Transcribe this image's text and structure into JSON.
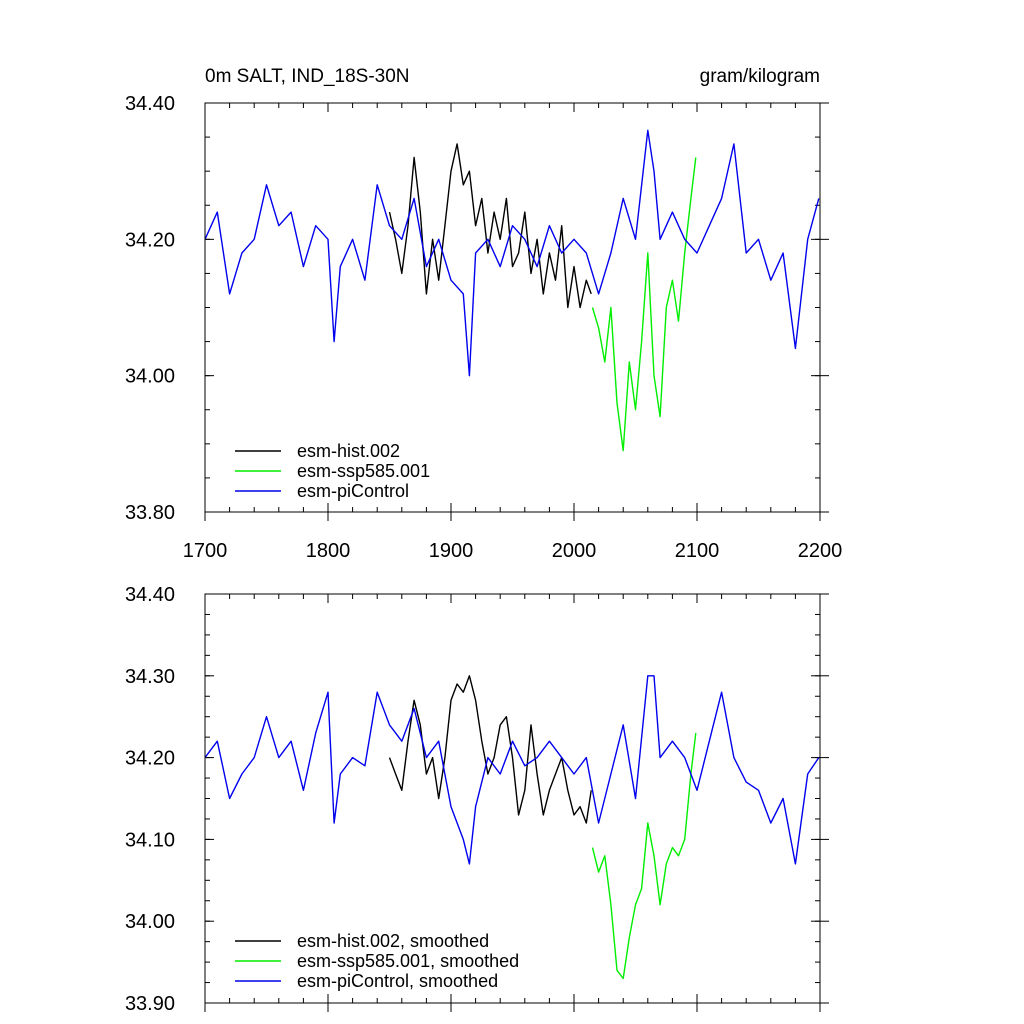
{
  "chart_data": [
    {
      "type": "line",
      "panel": "top",
      "title_left": "0m SALT, IND_18S-30N",
      "title_right": "gram/kilogram",
      "xlim": [
        1700,
        2200
      ],
      "ylim": [
        33.8,
        34.4
      ],
      "xticks": [
        1700,
        1800,
        1900,
        2000,
        2100,
        2200
      ],
      "xtick_labels": [
        "1700",
        "1800",
        "1900",
        "2000",
        "2100",
        "2200"
      ],
      "yticks": [
        33.8,
        34.0,
        34.2,
        34.4
      ],
      "ytick_labels": [
        "33.80",
        "34.00",
        "34.20",
        "34.40"
      ],
      "legend_position": "bottom-left",
      "series": [
        {
          "name": "esm-hist.002",
          "color": "#000000",
          "x": [
            1850,
            1855,
            1860,
            1865,
            1870,
            1875,
            1880,
            1885,
            1890,
            1895,
            1900,
            1905,
            1910,
            1915,
            1920,
            1925,
            1930,
            1935,
            1940,
            1945,
            1950,
            1955,
            1960,
            1965,
            1970,
            1975,
            1980,
            1985,
            1990,
            1995,
            2000,
            2005,
            2010,
            2014
          ],
          "y": [
            34.24,
            34.2,
            34.15,
            34.22,
            34.32,
            34.24,
            34.12,
            34.2,
            34.14,
            34.22,
            34.3,
            34.34,
            34.28,
            34.3,
            34.22,
            34.26,
            34.18,
            34.24,
            34.2,
            34.26,
            34.16,
            34.18,
            34.24,
            34.15,
            34.2,
            34.12,
            34.18,
            34.14,
            34.22,
            34.1,
            34.16,
            34.1,
            34.14,
            34.12
          ]
        },
        {
          "name": "esm-ssp585.001",
          "color": "#00ee00",
          "x": [
            2015,
            2020,
            2025,
            2030,
            2035,
            2040,
            2045,
            2050,
            2055,
            2060,
            2065,
            2070,
            2075,
            2080,
            2085,
            2090,
            2095,
            2099
          ],
          "y": [
            34.1,
            34.07,
            34.02,
            34.1,
            33.96,
            33.89,
            34.02,
            33.95,
            34.05,
            34.18,
            34.0,
            33.94,
            34.1,
            34.14,
            34.08,
            34.18,
            34.26,
            34.32
          ]
        },
        {
          "name": "esm-piControl",
          "color": "#0000ee",
          "x": [
            1700,
            1710,
            1720,
            1730,
            1740,
            1750,
            1760,
            1770,
            1780,
            1790,
            1800,
            1805,
            1810,
            1820,
            1830,
            1840,
            1850,
            1860,
            1870,
            1880,
            1890,
            1900,
            1910,
            1915,
            1920,
            1930,
            1940,
            1950,
            1960,
            1970,
            1980,
            1990,
            2000,
            2010,
            2020,
            2030,
            2040,
            2050,
            2060,
            2065,
            2070,
            2080,
            2090,
            2100,
            2110,
            2120,
            2130,
            2140,
            2150,
            2160,
            2170,
            2180,
            2190,
            2199
          ],
          "y": [
            34.2,
            34.24,
            34.12,
            34.18,
            34.2,
            34.28,
            34.22,
            34.24,
            34.16,
            34.22,
            34.2,
            34.05,
            34.16,
            34.2,
            34.14,
            34.28,
            34.22,
            34.2,
            34.26,
            34.16,
            34.2,
            34.14,
            34.12,
            34.0,
            34.18,
            34.2,
            34.16,
            34.22,
            34.2,
            34.16,
            34.22,
            34.18,
            34.2,
            34.18,
            34.12,
            34.18,
            34.26,
            34.2,
            34.36,
            34.3,
            34.2,
            34.24,
            34.2,
            34.18,
            34.22,
            34.26,
            34.34,
            34.18,
            34.2,
            34.14,
            34.18,
            34.04,
            34.2,
            34.26
          ]
        }
      ]
    },
    {
      "type": "line",
      "panel": "bottom",
      "xlim": [
        1700,
        2200
      ],
      "ylim": [
        33.9,
        34.4
      ],
      "xticks": [
        1700,
        1800,
        1900,
        2000,
        2100,
        2200
      ],
      "yticks": [
        33.9,
        34.0,
        34.1,
        34.2,
        34.3,
        34.4
      ],
      "ytick_labels": [
        "33.90",
        "34.00",
        "34.10",
        "34.20",
        "34.30",
        "34.40"
      ],
      "legend_position": "bottom-left",
      "series": [
        {
          "name": "esm-hist.002, smoothed",
          "color": "#000000",
          "x": [
            1850,
            1855,
            1860,
            1865,
            1870,
            1875,
            1880,
            1885,
            1890,
            1895,
            1900,
            1905,
            1910,
            1915,
            1920,
            1925,
            1930,
            1935,
            1940,
            1945,
            1950,
            1955,
            1960,
            1965,
            1970,
            1975,
            1980,
            1985,
            1990,
            1995,
            2000,
            2005,
            2010,
            2014
          ],
          "y": [
            34.2,
            34.18,
            34.16,
            34.22,
            34.27,
            34.24,
            34.18,
            34.2,
            34.15,
            34.2,
            34.27,
            34.29,
            34.28,
            34.3,
            34.27,
            34.22,
            34.18,
            34.2,
            34.24,
            34.25,
            34.2,
            34.13,
            34.16,
            34.24,
            34.18,
            34.13,
            34.16,
            34.18,
            34.2,
            34.16,
            34.13,
            34.14,
            34.12,
            34.16
          ]
        },
        {
          "name": "esm-ssp585.001, smoothed",
          "color": "#00ee00",
          "x": [
            2015,
            2020,
            2025,
            2030,
            2035,
            2040,
            2045,
            2050,
            2055,
            2060,
            2065,
            2070,
            2075,
            2080,
            2085,
            2090,
            2095,
            2099
          ],
          "y": [
            34.09,
            34.06,
            34.08,
            34.02,
            33.94,
            33.93,
            33.98,
            34.02,
            34.04,
            34.12,
            34.08,
            34.02,
            34.07,
            34.09,
            34.08,
            34.1,
            34.18,
            34.23
          ]
        },
        {
          "name": "esm-piControl, smoothed",
          "color": "#0000ee",
          "x": [
            1700,
            1710,
            1720,
            1730,
            1740,
            1750,
            1760,
            1770,
            1780,
            1790,
            1800,
            1805,
            1810,
            1820,
            1830,
            1840,
            1850,
            1860,
            1870,
            1880,
            1890,
            1900,
            1910,
            1915,
            1920,
            1930,
            1940,
            1950,
            1960,
            1970,
            1980,
            1990,
            2000,
            2010,
            2020,
            2030,
            2040,
            2050,
            2060,
            2065,
            2070,
            2080,
            2090,
            2100,
            2110,
            2120,
            2130,
            2140,
            2150,
            2160,
            2170,
            2180,
            2190,
            2199
          ],
          "y": [
            34.2,
            34.22,
            34.15,
            34.18,
            34.2,
            34.25,
            34.2,
            34.22,
            34.16,
            34.23,
            34.28,
            34.12,
            34.18,
            34.2,
            34.19,
            34.28,
            34.24,
            34.22,
            34.26,
            34.2,
            34.22,
            34.14,
            34.1,
            34.07,
            34.14,
            34.2,
            34.18,
            34.22,
            34.19,
            34.2,
            34.22,
            34.2,
            34.18,
            34.2,
            34.12,
            34.18,
            34.24,
            34.15,
            34.3,
            34.3,
            34.2,
            34.22,
            34.2,
            34.16,
            34.22,
            34.28,
            34.2,
            34.17,
            34.16,
            34.12,
            34.15,
            34.07,
            34.18,
            34.2
          ]
        }
      ]
    }
  ]
}
